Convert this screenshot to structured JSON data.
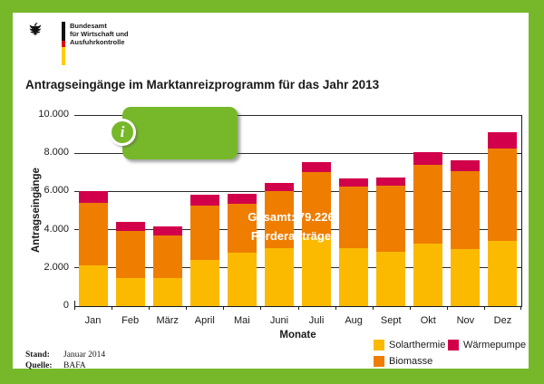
{
  "header": {
    "logo_line1": "Bundesamt",
    "logo_line2": "für Wirtschaft und",
    "logo_line3": "Ausfuhrkontrolle"
  },
  "title": "Antragseingänge im Marktanreizprogramm für das Jahr 2013",
  "callout": {
    "icon": "i",
    "line1": "Gesamt: 79.226",
    "line2": "Förderanträge"
  },
  "chart_data": {
    "type": "bar",
    "stacked": true,
    "title": "Antragseingänge im Marktanreizprogramm für das Jahr 2013",
    "categories": [
      "Jan",
      "Feb",
      "März",
      "April",
      "Mai",
      "Juni",
      "Juli",
      "Aug",
      "Sept",
      "Okt",
      "Nov",
      "Dez"
    ],
    "series": [
      {
        "name": "Solarthermie",
        "color": "#FBBA00",
        "values": [
          2150,
          1450,
          1450,
          2400,
          2800,
          3050,
          3600,
          3050,
          2850,
          3250,
          3000,
          3400
        ]
      },
      {
        "name": "Biomasse",
        "color": "#EE7D00",
        "values": [
          3250,
          2500,
          2250,
          2850,
          2550,
          2950,
          3400,
          3200,
          3450,
          4150,
          4050,
          4850
        ]
      },
      {
        "name": "Wärmepumpe",
        "color": "#D2004A",
        "values": [
          600,
          450,
          450,
          600,
          550,
          450,
          550,
          450,
          450,
          650,
          600,
          850
        ]
      }
    ],
    "xlabel": "Monate",
    "ylabel": "Antragseingänge",
    "ylim": [
      0,
      10000
    ],
    "yticks": [
      {
        "value": 0,
        "label": "0"
      },
      {
        "value": 2000,
        "label": "2.000"
      },
      {
        "value": 4000,
        "label": "4.000"
      },
      {
        "value": 6000,
        "label": "6.000"
      },
      {
        "value": 8000,
        "label": "8.000"
      },
      {
        "value": 10000,
        "label": "10.000"
      }
    ],
    "grid": "horizontal",
    "legend_position": "bottom-right",
    "total_annotation": "Gesamt: 79.226 Förderanträge"
  },
  "legend": {
    "items": [
      {
        "label": "Solarthermie",
        "color": "#FBBA00"
      },
      {
        "label": "Wärmepumpe",
        "color": "#D2004A"
      },
      {
        "label": "Biomasse",
        "color": "#EE7D00"
      }
    ]
  },
  "footer": {
    "stand_label": "Stand:",
    "stand_value": "Januar 2014",
    "quelle_label": "Quelle:",
    "quelle_value": "BAFA"
  },
  "colors": {
    "frame_green": "#76B82A",
    "solarthermie_yellow": "#FBBA00",
    "biomasse_orange": "#EE7D00",
    "waermepumpe_red": "#D2004A"
  }
}
